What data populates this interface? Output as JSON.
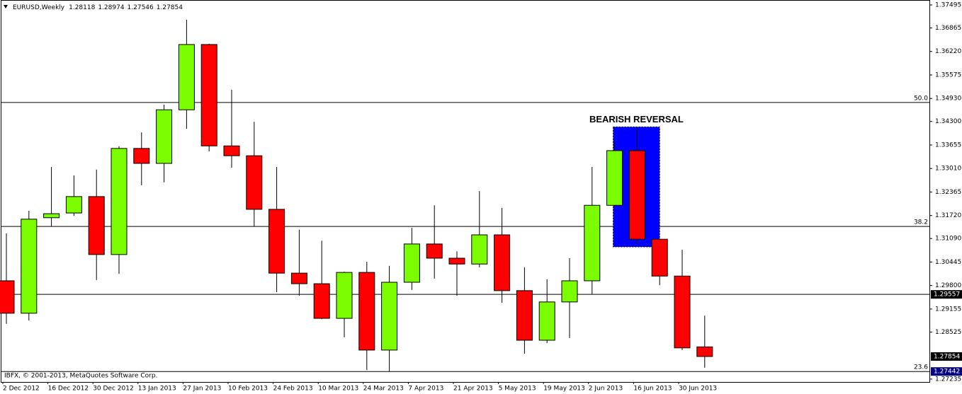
{
  "symbol": "EURUSD,Weekly",
  "copyright": "IBFX, © 2001-2013, MetaQuotes Software Corp.",
  "chart_data": {
    "type": "candlestick",
    "categories": [
      "2 Dec 2012",
      null,
      "16 Dec 2012",
      null,
      "30 Dec 2012",
      null,
      "13 Jan 2013",
      null,
      "27 Jan 2013",
      null,
      "10 Feb 2013",
      null,
      "24 Feb 2013",
      null,
      "10 Mar 2013",
      null,
      "24 Mar 2013",
      null,
      "7 Apr 2013",
      null,
      "21 Apr 2013",
      null,
      "5 May 2013",
      null,
      "19 May 2013",
      null,
      "2 Jun 2013",
      null,
      "16 Jun 2013",
      null,
      "30 Jun 2013",
      null
    ],
    "open": [
      1.2993,
      1.2904,
      1.3166,
      1.3179,
      1.3224,
      1.3065,
      1.3356,
      1.3315,
      1.3462,
      1.3641,
      1.3363,
      1.3336,
      1.3189,
      1.3014,
      1.2985,
      1.289,
      1.3016,
      1.2803,
      1.2989,
      1.3094,
      1.3055,
      1.3039,
      1.3119,
      1.2966,
      1.283,
      1.2935,
      1.2993,
      1.32,
      1.335,
      1.3107,
      1.3006,
      1.28118
    ],
    "high": [
      1.3123,
      1.3185,
      1.3305,
      1.3282,
      1.3298,
      1.3362,
      1.34,
      1.3476,
      1.3709,
      1.3643,
      1.3517,
      1.3429,
      1.3305,
      1.3133,
      1.3103,
      1.3018,
      1.3045,
      1.3034,
      1.3138,
      1.32,
      1.3074,
      1.3239,
      1.3193,
      1.303,
      1.2997,
      1.3055,
      1.3305,
      1.3379,
      1.3414,
      1.3107,
      1.3078,
      1.28974
    ],
    "low": [
      1.2875,
      1.2884,
      1.3142,
      1.3171,
      1.2995,
      1.3012,
      1.3255,
      1.3263,
      1.341,
      1.3348,
      1.3303,
      1.3142,
      1.2962,
      1.2952,
      1.2888,
      1.2838,
      1.2748,
      1.2745,
      1.2968,
      1.2999,
      1.2952,
      1.303,
      1.2933,
      1.2793,
      1.2822,
      1.2836,
      1.2956,
      1.3197,
      1.3094,
      1.2981,
      1.2803,
      1.27546
    ],
    "close": [
      1.2904,
      1.3162,
      1.3177,
      1.3224,
      1.3065,
      1.3356,
      1.3315,
      1.3462,
      1.3641,
      1.3363,
      1.3336,
      1.3189,
      1.3014,
      1.2985,
      1.289,
      1.3016,
      1.2803,
      1.2989,
      1.3094,
      1.3055,
      1.3039,
      1.3119,
      1.2966,
      1.283,
      1.2935,
      1.2993,
      1.32,
      1.335,
      1.3107,
      1.3006,
      1.2809,
      1.27854
    ],
    "up_color": "#7cfc00",
    "down_color": "#ff0000",
    "ylim": [
      1.27155,
      1.37631
    ],
    "yticks": [
      1.37495,
      1.36865,
      {
        "value": 1.3622,
        "label": "1.36220"
      },
      1.35575,
      {
        "value": 1.3493,
        "label": "1.34930"
      },
      {
        "value": 1.343,
        "label": "1.34300"
      },
      1.33655,
      {
        "value": 1.3301,
        "label": "1.33010"
      },
      1.32365,
      {
        "value": 1.3172,
        "label": "1.31720"
      },
      {
        "value": 1.3109,
        "label": "1.31090"
      },
      1.30445,
      {
        "value": 1.298,
        "label": "1.29800"
      },
      1.29155,
      1.28525,
      1.27235
    ],
    "levels": [
      {
        "label": "50.0",
        "value": 1.3482
      },
      {
        "label": "38.2",
        "value": 1.3142
      },
      {
        "label": "23.6",
        "value": 1.27442
      }
    ],
    "hline": 1.29557,
    "annotation": {
      "text": "BEARISH REVERSAL",
      "top": 1.3415,
      "bottom": 1.3086
    }
  }
}
